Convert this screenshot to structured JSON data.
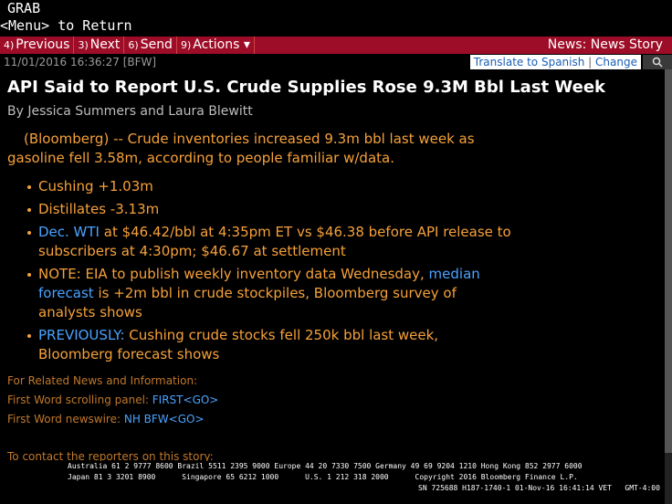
{
  "header": {
    "title": "GRAB",
    "subtitle": "<Menu> to Return"
  },
  "toolbar": {
    "buttons": [
      {
        "key": "4)",
        "label": "Previous"
      },
      {
        "key": "3)",
        "label": "Next"
      },
      {
        "key": "6)",
        "label": "Send"
      },
      {
        "key": "9)",
        "label": "Actions ▾"
      }
    ],
    "right": "News: News Story"
  },
  "meta": {
    "timestamp": "11/01/2016 16:36:27 [BFW]",
    "translate": "Translate to Spanish",
    "separator": "|",
    "change": "Change"
  },
  "story": {
    "headline": "API Said to Report U.S. Crude Supplies Rose 9.3M Bbl Last Week",
    "byline": "By Jessica Summers and Laura Blewitt",
    "lead": "(Bloomberg) -- Crude inventories increased 9.3m bbl last week as gasoline fell 3.58m, according to people familiar w/data.",
    "bullets": [
      {
        "before": "Cushing +1.03m"
      },
      {
        "before": "Distillates -3.13m"
      },
      {
        "link": "Dec. WTI",
        "after": " at $46.42/bbl at 4:35pm ET vs $46.38 before API release to subscribers at 4:30pm; $46.67 at settlement"
      },
      {
        "before": "NOTE: EIA to publish weekly inventory data Wednesday, ",
        "link": "median forecast",
        "after": " is +2m bbl in crude stockpiles, Bloomberg survey of analysts shows"
      },
      {
        "link": "PREVIOUSLY:",
        "after": " Cushing crude stocks fell 250k bbl last week, Bloomberg forecast shows"
      }
    ],
    "related": {
      "heading": "For Related News and Information:",
      "lines": [
        {
          "label": "First Word scrolling panel: ",
          "link": "FIRST<GO>"
        },
        {
          "label": "First Word newswire: ",
          "link": "NH BFW<GO>"
        }
      ]
    },
    "contact": "To contact the reporters on this story:"
  },
  "footer": {
    "line1": "Australia 61 2 9777 8600 Brazil 5511 2395 9000 Europe 44 20 7330 7500 Germany 49 69 9204 1210 Hong Kong 852 2977 6000",
    "line2": "Japan 81 3 3201 8900      Singapore 65 6212 1000      U.S. 1 212 318 2000      Copyright 2016 Bloomberg Finance L.P.",
    "line3": "SN 725688 H187-1740-1 01-Nov-16 16:41:14 VET   GMT-4:00"
  }
}
